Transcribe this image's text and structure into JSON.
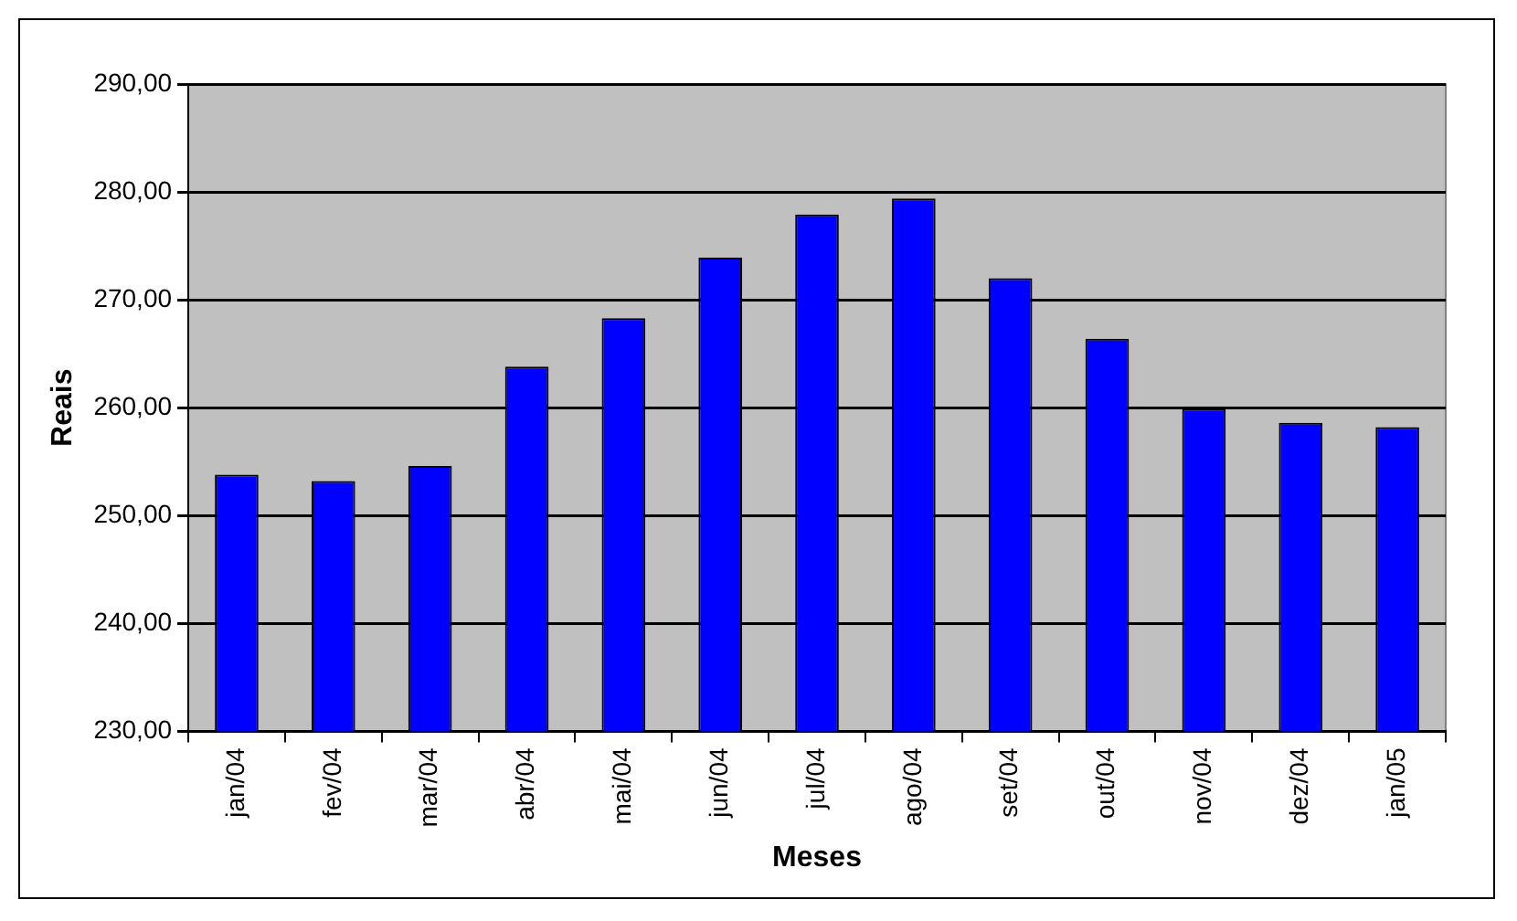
{
  "chart_data": {
    "type": "bar",
    "xlabel": "Meses",
    "ylabel": "Reais",
    "categories": [
      "jan/04",
      "fev/04",
      "mar/04",
      "abr/04",
      "mai/04",
      "jun/04",
      "jul/04",
      "ago/04",
      "set/04",
      "out/04",
      "nov/04",
      "dez/04",
      "jan/05"
    ],
    "values": [
      253.8,
      253.2,
      254.6,
      263.8,
      268.3,
      273.9,
      277.9,
      279.4,
      272.0,
      266.4,
      259.9,
      258.6,
      258.2
    ],
    "color": "#0000ff",
    "ylim": [
      230,
      290
    ],
    "yticks": [
      {
        "value": 230,
        "label": "230,00"
      },
      {
        "value": 240,
        "label": "240,00"
      },
      {
        "value": 250,
        "label": "250,00"
      },
      {
        "value": 260,
        "label": "260,00"
      },
      {
        "value": 270,
        "label": "270,00"
      },
      {
        "value": 280,
        "label": "280,00"
      },
      {
        "value": 290,
        "label": "290,00"
      }
    ],
    "grid": "y",
    "legend": false
  }
}
